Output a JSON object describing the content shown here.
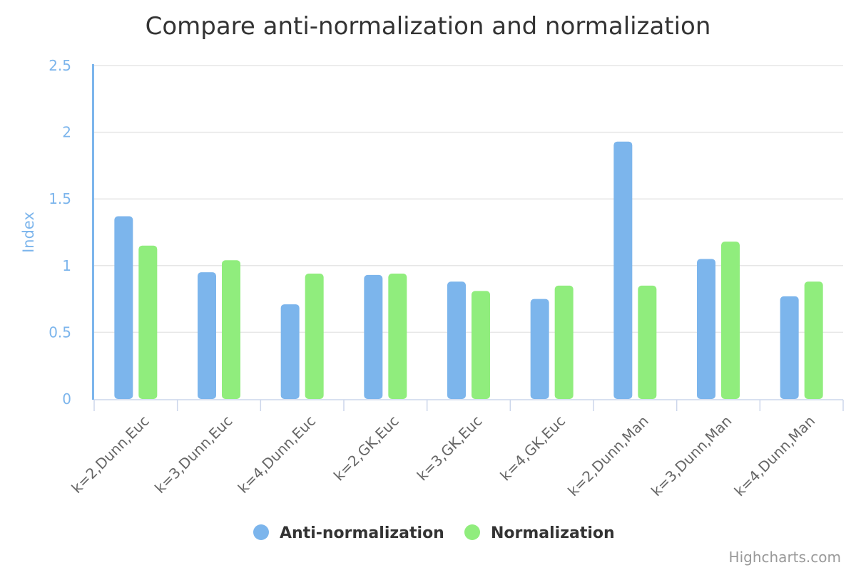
{
  "chart_data": {
    "type": "bar",
    "title": "Compare anti-normalization and normalization",
    "ylabel": "Index",
    "xlabel": "",
    "ylim": [
      0,
      2.5
    ],
    "yticks": [
      "0",
      "0.5",
      "1",
      "1.5",
      "2",
      "2.5"
    ],
    "grid": true,
    "legend_position": "bottom-center",
    "categories": [
      "k=2,Dunn,Euc",
      "k=3,Dunn,Euc",
      "k=4,Dunn,Euc",
      "k=2,GK,Euc",
      "k=3,GK,Euc",
      "k=4,GK,Euc",
      "k=2,Dunn,Man",
      "k=3,Dunn,Man",
      "k=4,Dunn,Man"
    ],
    "series": [
      {
        "name": "Anti-normalization",
        "color": "#7cb5ec",
        "values": [
          1.37,
          0.95,
          0.71,
          0.93,
          0.88,
          0.75,
          1.93,
          1.05,
          0.77
        ]
      },
      {
        "name": "Normalization",
        "color": "#90ed7d",
        "values": [
          1.15,
          1.04,
          0.94,
          0.94,
          0.81,
          0.85,
          0.85,
          1.18,
          0.88
        ]
      }
    ]
  },
  "credits": "Highcharts.com"
}
